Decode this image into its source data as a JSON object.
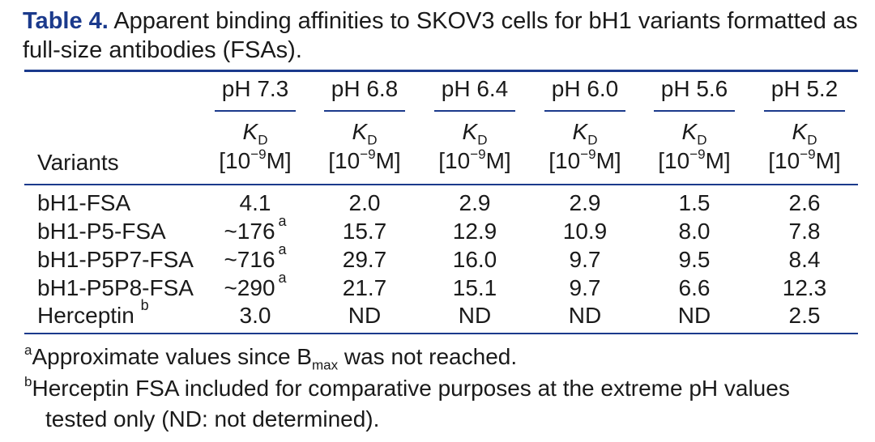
{
  "caption": {
    "label": "Table 4.",
    "text": "Apparent binding affinities to SKOV3 cells for bH1 variants formatted as full-size antibodies (FSAs)."
  },
  "table": {
    "row_header": "Variants",
    "kd_symbol": "K",
    "kd_sub": "D",
    "unit_pre": "[10",
    "unit_exp": "−9",
    "unit_post": "M]",
    "columns": [
      "pH 7.3",
      "pH 6.8",
      "pH 6.4",
      "pH 6.0",
      "pH 5.6",
      "pH 5.2"
    ],
    "rows": [
      {
        "name": "bH1-FSA",
        "name_note": "",
        "values": [
          "4.1",
          "2.0",
          "2.9",
          "2.9",
          "1.5",
          "2.6"
        ],
        "first_note": ""
      },
      {
        "name": "bH1-P5-FSA",
        "name_note": "",
        "values": [
          "~176",
          "15.7",
          "12.9",
          "10.9",
          "8.0",
          "7.8"
        ],
        "first_note": "a"
      },
      {
        "name": "bH1-P5P7-FSA",
        "name_note": "",
        "values": [
          "~716",
          "29.7",
          "16.0",
          "9.7",
          "9.5",
          "8.4"
        ],
        "first_note": "a"
      },
      {
        "name": "bH1-P5P8-FSA",
        "name_note": "",
        "values": [
          "~290",
          "21.7",
          "15.1",
          "9.7",
          "6.6",
          "12.3"
        ],
        "first_note": "a"
      },
      {
        "name": "Herceptin",
        "name_note": "b",
        "values": [
          "3.0",
          "ND",
          "ND",
          "ND",
          "ND",
          "2.5"
        ],
        "first_note": ""
      }
    ]
  },
  "footnotes": {
    "a_mark": "a",
    "a_text_pre": "Approximate values since B",
    "a_sub": "max",
    "a_text_post": " was not reached.",
    "b_mark": "b",
    "b_line1": "Herceptin FSA included for comparative purposes at the extreme pH values",
    "b_line2": "tested only (ND: not determined)."
  },
  "colors": {
    "accent": "#1b3a8c",
    "text": "#1a1a1a"
  }
}
